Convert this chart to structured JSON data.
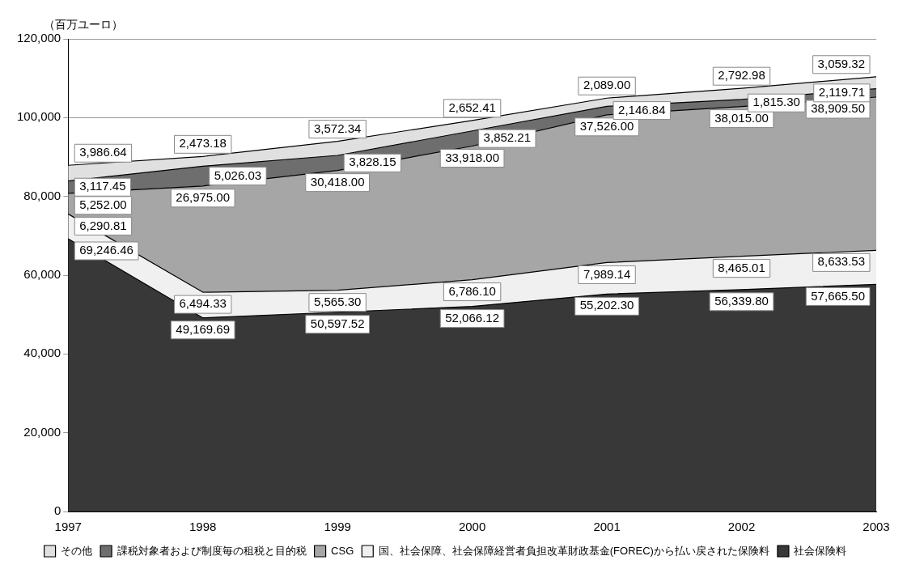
{
  "chart_data": {
    "type": "area",
    "stacked": true,
    "ylabel": "（百万ユーロ）",
    "categories": [
      "1997",
      "1998",
      "1999",
      "2000",
      "2001",
      "2002",
      "2003"
    ],
    "series": [
      {
        "name": "社会保険料",
        "color": "#383838",
        "values": [
          69246.46,
          49169.69,
          50597.52,
          52066.12,
          55202.3,
          56339.8,
          57665.5
        ],
        "value_labels": [
          "69,246.46",
          "49,169.69",
          "50,597.52",
          "52,066.12",
          "55,202.30",
          "56,339.80",
          "57,665.50"
        ]
      },
      {
        "name": "国、社会保障、社会保障経営者負担改革財政基金(FOREC)から払い戻された保険料",
        "color": "#f0f0f0",
        "values": [
          6290.81,
          6494.33,
          5565.3,
          6786.1,
          7989.14,
          8465.01,
          8633.53
        ],
        "value_labels": [
          "6,290.81",
          "6,494.33",
          "5,565.30",
          "6,786.10",
          "7,989.14",
          "8,465.01",
          "8,633.53"
        ]
      },
      {
        "name": "CSG",
        "color": "#a6a6a6",
        "values": [
          5252.0,
          26975.0,
          30418.0,
          33918.0,
          37526.0,
          38015.0,
          38909.5
        ],
        "value_labels": [
          "5,252.00",
          "26,975.00",
          "30,418.00",
          "33,918.00",
          "37,526.00",
          "38,015.00",
          "38,909.50"
        ]
      },
      {
        "name": "課税対象者および制度毎の租税と目的税",
        "color": "#6e6e6e",
        "values": [
          3117.45,
          5026.03,
          3828.15,
          3852.21,
          2146.84,
          1815.3,
          2119.71
        ],
        "value_labels": [
          "3,117.45",
          "5,026.03",
          "3,828.15",
          "3,852.21",
          "2,146.84",
          "1,815.30",
          "2,119.71"
        ]
      },
      {
        "name": "その他",
        "color": "#e0e0e0",
        "values": [
          3986.64,
          2473.18,
          3572.34,
          2652.41,
          2089.0,
          2792.98,
          3059.32
        ],
        "value_labels": [
          "3,986.64",
          "2,473.18",
          "3,572.34",
          "2,652.41",
          "2,089.00",
          "2,792.98",
          "3,059.32"
        ]
      }
    ],
    "ylim": [
      0,
      120000
    ],
    "yticks": [
      {
        "value": 0,
        "label": "0"
      },
      {
        "value": 20000,
        "label": "20,000"
      },
      {
        "value": 40000,
        "label": "40,000"
      },
      {
        "value": 60000,
        "label": "60,000"
      },
      {
        "value": 80000,
        "label": "80,000"
      },
      {
        "value": 100000,
        "label": "100,000"
      },
      {
        "value": 120000,
        "label": "120,000"
      }
    ],
    "grid": "y",
    "legend": "bottom"
  }
}
